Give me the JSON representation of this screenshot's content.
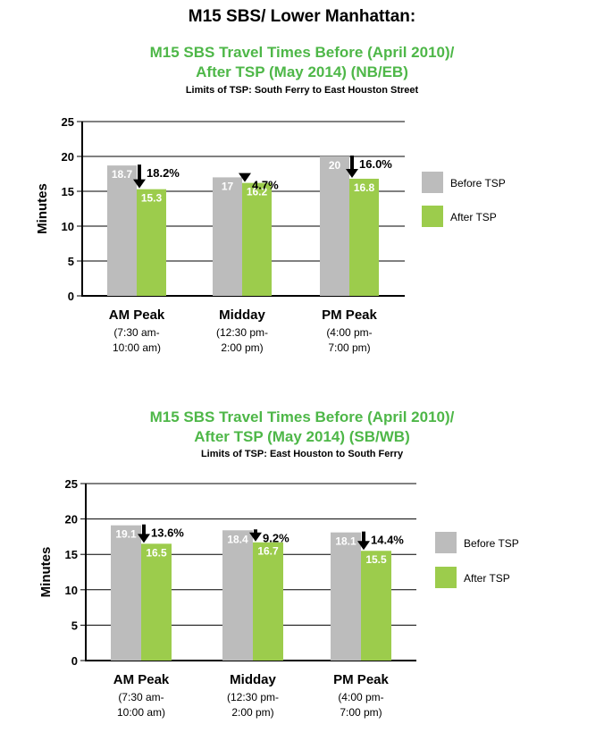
{
  "page_title": "M15 SBS/ Lower Manhattan:",
  "colors": {
    "before": "#bcbcbc",
    "after": "#9ccc4c",
    "title_green": "#4eb748",
    "arrow": "#000000"
  },
  "chart_data": [
    {
      "type": "bar",
      "title_line1": "M15 SBS Travel Times Before (April 2010)/",
      "title_line2": "After TSP (May 2014) (NB/EB)",
      "subtitle": "Limits of TSP: South Ferry to East Houston Street",
      "ylabel": "Minutes",
      "ylim": [
        0,
        25
      ],
      "yticks": [
        0,
        5,
        10,
        15,
        20,
        25
      ],
      "grid": true,
      "legend_position": "right",
      "categories": [
        "AM Peak",
        "Midday",
        "PM Peak"
      ],
      "category_sublabels": [
        [
          "(7:30 am-",
          "10:00 am)"
        ],
        [
          "(12:30 pm-",
          "2:00 pm)"
        ],
        [
          "(4:00 pm-",
          "7:00 pm)"
        ]
      ],
      "series": [
        {
          "name": "Before TSP",
          "values": [
            18.7,
            17,
            20
          ],
          "labels": [
            "18.7",
            "17",
            "20"
          ]
        },
        {
          "name": "After TSP",
          "values": [
            15.3,
            16.2,
            16.8
          ],
          "labels": [
            "15.3",
            "16.2",
            "16.8"
          ]
        }
      ],
      "change_labels": [
        "18.2%",
        "4.7%",
        "16.0%"
      ]
    },
    {
      "type": "bar",
      "title_line1": "M15 SBS Travel Times Before (April 2010)/",
      "title_line2": "After TSP (May 2014) (SB/WB)",
      "subtitle": "Limits of TSP: East Houston to South Ferry",
      "ylabel": "Minutes",
      "ylim": [
        0,
        25
      ],
      "yticks": [
        0,
        5,
        10,
        15,
        20,
        25
      ],
      "grid": true,
      "legend_position": "right",
      "categories": [
        "AM Peak",
        "Midday",
        "PM Peak"
      ],
      "category_sublabels": [
        [
          "(7:30 am-",
          "10:00 am)"
        ],
        [
          "(12:30 pm-",
          "2:00 pm)"
        ],
        [
          "(4:00 pm-",
          "7:00 pm)"
        ]
      ],
      "series": [
        {
          "name": "Before TSP",
          "values": [
            19.1,
            18.4,
            18.1
          ],
          "labels": [
            "19.1",
            "18.4",
            "18.1"
          ]
        },
        {
          "name": "After TSP",
          "values": [
            16.5,
            16.7,
            15.5
          ],
          "labels": [
            "16.5",
            "16.7",
            "15.5"
          ]
        }
      ],
      "change_labels": [
        "13.6%",
        "9.2%",
        "14.4%"
      ]
    }
  ]
}
